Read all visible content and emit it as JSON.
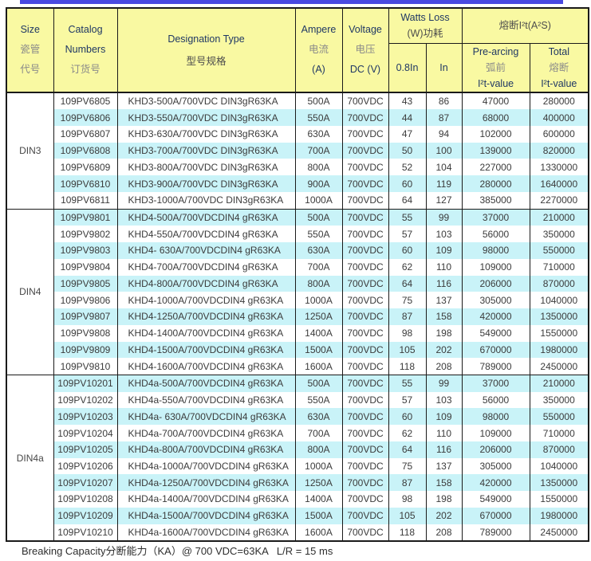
{
  "colors": {
    "accent_bar": "#4a4ae0",
    "header_bg": "#f9f9a2",
    "stripe": "#c9f3f8",
    "border": "#1a1a1a",
    "header_english_text": "#203864",
    "header_chinese_text": "#8a8a8a",
    "header_chinese_dark_text": "#4d4d4d",
    "body_text": "#3b3b3b",
    "footer_text": "#2e2e2e"
  },
  "table": {
    "header": {
      "size": [
        "Size",
        "瓷管",
        "代号"
      ],
      "catalog": [
        "Catalog",
        "Numbers",
        "订货号"
      ],
      "designation": [
        "Designation Type",
        "型号规格"
      ],
      "ampere": [
        "Ampere",
        "电流",
        "(A)"
      ],
      "voltage": [
        "Voltage",
        "电压",
        "DC (V)"
      ],
      "watts_group": [
        "Watts Loss",
        "(W)功耗"
      ],
      "watts_sub": [
        "0.8In",
        "In"
      ],
      "i2t_group": "熔断I²t(A²S)",
      "pre_arcing": [
        "Pre-arcing",
        "弧前",
        "I²t-value"
      ],
      "total": [
        "Total",
        "熔断",
        "I²t-value"
      ]
    },
    "groups": [
      {
        "size": "DIN3",
        "rows": [
          [
            "109PV6805",
            "KHD3-500A/700VDC DIN3gR63KA",
            "500A",
            "700VDC",
            "43",
            "86",
            "47000",
            "280000"
          ],
          [
            "109PV6806",
            "KHD3-550A/700VDC DIN3gR63KA",
            "550A",
            "700VDC",
            "44",
            "87",
            "68000",
            "400000"
          ],
          [
            "109PV6807",
            "KHD3-630A/700VDC DIN3gR63KA",
            "630A",
            "700VDC",
            "47",
            "94",
            "102000",
            "600000"
          ],
          [
            "109PV6808",
            "KHD3-700A/700VDC DIN3gR63KA",
            "700A",
            "700VDC",
            "50",
            "100",
            "139000",
            "820000"
          ],
          [
            "109PV6809",
            "KHD3-800A/700VDC DIN3gR63KA",
            "800A",
            "700VDC",
            "52",
            "104",
            "227000",
            "1330000"
          ],
          [
            "109PV6810",
            "KHD3-900A/700VDC DIN3gR63KA",
            "900A",
            "700VDC",
            "60",
            "119",
            "280000",
            "1640000"
          ],
          [
            "109PV6811",
            "KHD3-1000A/700VDC DIN3gR63KA",
            "1000A",
            "700VDC",
            "64",
            "127",
            "385000",
            "2270000"
          ]
        ]
      },
      {
        "size": "DIN4",
        "rows": [
          [
            "109PV9801",
            "KHD4-500A/700VDCDIN4 gR63KA",
            "500A",
            "700VDC",
            "55",
            "99",
            "37000",
            "210000"
          ],
          [
            "109PV9802",
            "KHD4-550A/700VDCDIN4 gR63KA",
            "550A",
            "700VDC",
            "57",
            "103",
            "56000",
            "350000"
          ],
          [
            "109PV9803",
            "KHD4- 630A/700VDCDIN4 gR63KA",
            "630A",
            "700VDC",
            "60",
            "109",
            "98000",
            "550000"
          ],
          [
            "109PV9804",
            "KHD4-700A/700VDCDIN4 gR63KA",
            "700A",
            "700VDC",
            "62",
            "110",
            "109000",
            "710000"
          ],
          [
            "109PV9805",
            "KHD4-800A/700VDCDIN4 gR63KA",
            "800A",
            "700VDC",
            "64",
            "116",
            "206000",
            "870000"
          ],
          [
            "109PV9806",
            "KHD4-1000A/700VDCDIN4 gR63KA",
            "1000A",
            "700VDC",
            "75",
            "137",
            "305000",
            "1040000"
          ],
          [
            "109PV9807",
            "KHD4-1250A/700VDCDIN4 gR63KA",
            "1250A",
            "700VDC",
            "87",
            "158",
            "420000",
            "1350000"
          ],
          [
            "109PV9808",
            "KHD4-1400A/700VDCDIN4 gR63KA",
            "1400A",
            "700VDC",
            "98",
            "198",
            "549000",
            "1550000"
          ],
          [
            "109PV9809",
            "KHD4-1500A/700VDCDIN4 gR63KA",
            "1500A",
            "700VDC",
            "105",
            "202",
            "670000",
            "1980000"
          ],
          [
            "109PV9810",
            "KHD4-1600A/700VDCDIN4 gR63KA",
            "1600A",
            "700VDC",
            "118",
            "208",
            "789000",
            "2450000"
          ]
        ]
      },
      {
        "size": "DIN4a",
        "rows": [
          [
            "109PV10201",
            "KHD4a-500A/700VDCDIN4 gR63KA",
            "500A",
            "700VDC",
            "55",
            "99",
            "37000",
            "210000"
          ],
          [
            "109PV10202",
            "KHD4a-550A/700VDCDIN4 gR63KA",
            "550A",
            "700VDC",
            "57",
            "103",
            "56000",
            "350000"
          ],
          [
            "109PV10203",
            "KHD4a- 630A/700VDCDIN4 gR63KA",
            "630A",
            "700VDC",
            "60",
            "109",
            "98000",
            "550000"
          ],
          [
            "109PV10204",
            "KHD4a-700A/700VDCDIN4 gR63KA",
            "700A",
            "700VDC",
            "62",
            "110",
            "109000",
            "710000"
          ],
          [
            "109PV10205",
            "KHD4a-800A/700VDCDIN4 gR63KA",
            "800A",
            "700VDC",
            "64",
            "116",
            "206000",
            "870000"
          ],
          [
            "109PV10206",
            "KHD4a-1000A/700VDCDIN4 gR63KA",
            "1000A",
            "700VDC",
            "75",
            "137",
            "305000",
            "1040000"
          ],
          [
            "109PV10207",
            "KHD4a-1250A/700VDCDIN4 gR63KA",
            "1250A",
            "700VDC",
            "87",
            "158",
            "420000",
            "1350000"
          ],
          [
            "109PV10208",
            "KHD4a-1400A/700VDCDIN4 gR63KA",
            "1400A",
            "700VDC",
            "98",
            "198",
            "549000",
            "1550000"
          ],
          [
            "109PV10209",
            "KHD4a-1500A/700VDCDIN4 gR63KA",
            "1500A",
            "700VDC",
            "105",
            "202",
            "670000",
            "1980000"
          ],
          [
            "109PV10210",
            "KHD4a-1600A/700VDCDIN4 gR63KA",
            "1600A",
            "700VDC",
            "118",
            "208",
            "789000",
            "2450000"
          ]
        ]
      }
    ]
  },
  "footer": {
    "text": "Breaking Capacity分断能力（KA）@ 700 VDC=63KA   L/R = 15 ms"
  }
}
